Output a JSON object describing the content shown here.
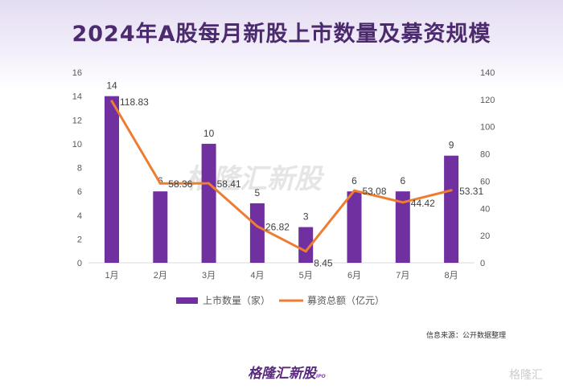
{
  "title": "2024年A股每月新股上市数量及募资规模",
  "source": "信息来源：公开数据整理",
  "logo": "格隆汇新股",
  "logo_sub": "IPO",
  "watermark": "格隆汇",
  "chart_data": {
    "type": "bar+line",
    "categories": [
      "1月",
      "2月",
      "3月",
      "4月",
      "5月",
      "6月",
      "7月",
      "8月"
    ],
    "series": [
      {
        "name": "上市数量（家）",
        "type": "bar",
        "axis": "left",
        "color": "#7030a0",
        "values": [
          14,
          6,
          10,
          5,
          3,
          6,
          6,
          9
        ]
      },
      {
        "name": "募资总额（亿元）",
        "type": "line",
        "axis": "right",
        "color": "#ed7d31",
        "values": [
          118.83,
          58.36,
          58.41,
          26.82,
          8.45,
          53.08,
          44.42,
          53.31
        ]
      }
    ],
    "ylim_left": [
      0,
      16
    ],
    "yticks_left": [
      0,
      2,
      4,
      6,
      8,
      10,
      12,
      14,
      16
    ],
    "ylim_right": [
      0,
      140
    ],
    "yticks_right": [
      0,
      20,
      40,
      60,
      80,
      100,
      120,
      140
    ],
    "grid": false,
    "legend": "bottom"
  }
}
